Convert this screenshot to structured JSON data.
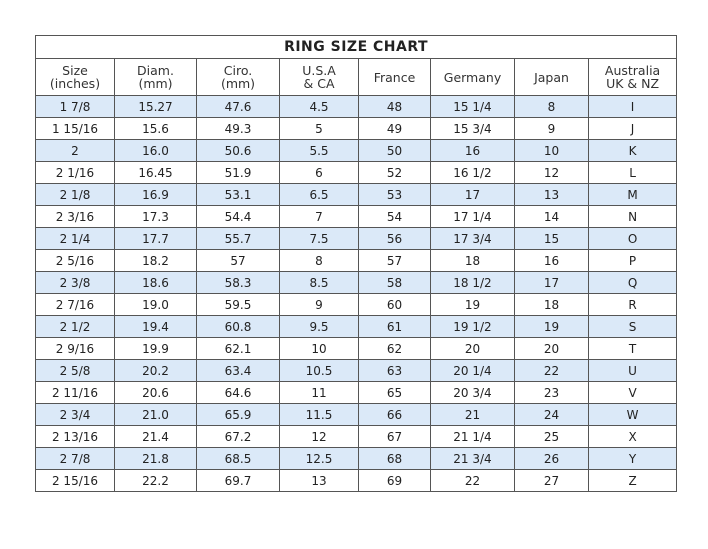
{
  "title": "RING SIZE CHART",
  "headers": [
    [
      "Size",
      "(inches)"
    ],
    [
      "Diam.",
      "(mm)"
    ],
    [
      "Ciro.",
      "(mm)"
    ],
    [
      "U.S.A",
      "& CA"
    ],
    [
      "France",
      ""
    ],
    [
      "Germany",
      ""
    ],
    [
      "Japan",
      ""
    ],
    [
      "Australia",
      "UK & NZ"
    ]
  ],
  "row_alt_color": "#dbe9f8",
  "rows": [
    [
      "1 7/8",
      "15.27",
      "47.6",
      "4.5",
      "48",
      "15 1/4",
      "8",
      "I"
    ],
    [
      "1 15/16",
      "15.6",
      "49.3",
      "5",
      "49",
      "15 3/4",
      "9",
      "J"
    ],
    [
      "2",
      "16.0",
      "50.6",
      "5.5",
      "50",
      "16",
      "10",
      "K"
    ],
    [
      "2 1/16",
      "16.45",
      "51.9",
      "6",
      "52",
      "16 1/2",
      "12",
      "L"
    ],
    [
      "2 1/8",
      "16.9",
      "53.1",
      "6.5",
      "53",
      "17",
      "13",
      "M"
    ],
    [
      "2 3/16",
      "17.3",
      "54.4",
      "7",
      "54",
      "17 1/4",
      "14",
      "N"
    ],
    [
      "2 1/4",
      "17.7",
      "55.7",
      "7.5",
      "56",
      "17 3/4",
      "15",
      "O"
    ],
    [
      "2 5/16",
      "18.2",
      "57",
      "8",
      "57",
      "18",
      "16",
      "P"
    ],
    [
      "2 3/8",
      "18.6",
      "58.3",
      "8.5",
      "58",
      "18 1/2",
      "17",
      "Q"
    ],
    [
      "2 7/16",
      "19.0",
      "59.5",
      "9",
      "60",
      "19",
      "18",
      "R"
    ],
    [
      "2 1/2",
      "19.4",
      "60.8",
      "9.5",
      "61",
      "19 1/2",
      "19",
      "S"
    ],
    [
      "2 9/16",
      "19.9",
      "62.1",
      "10",
      "62",
      "20",
      "20",
      "T"
    ],
    [
      "2 5/8",
      "20.2",
      "63.4",
      "10.5",
      "63",
      "20 1/4",
      "22",
      "U"
    ],
    [
      "2 11/16",
      "20.6",
      "64.6",
      "11",
      "65",
      "20 3/4",
      "23",
      "V"
    ],
    [
      "2 3/4",
      "21.0",
      "65.9",
      "11.5",
      "66",
      "21",
      "24",
      "W"
    ],
    [
      "2 13/16",
      "21.4",
      "67.2",
      "12",
      "67",
      "21 1/4",
      "25",
      "X"
    ],
    [
      "2 7/8",
      "21.8",
      "68.5",
      "12.5",
      "68",
      "21 3/4",
      "26",
      "Y"
    ],
    [
      "2 15/16",
      "22.2",
      "69.7",
      "13",
      "69",
      "22",
      "27",
      "Z"
    ]
  ]
}
